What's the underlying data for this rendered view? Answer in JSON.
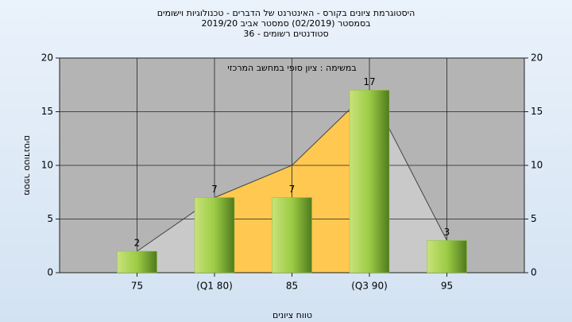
{
  "chart_data": {
    "type": "bar",
    "title": [
      "היסטוגרמת ציונים בקורס - האינטרנט של הדברים - טכנולוגיות וישומים",
      "בסמסטר  (02/2019)  סמסטר אביב 2019/20",
      "סטודנטים רשומים - 36"
    ],
    "subtitle": "במשימה : ציון סופי במחשב המרכזי",
    "x_label": "טווח ציונים",
    "y_label": "מספר סטודנטים",
    "categories": [
      "75",
      "(Q1 80)",
      "85",
      "(Q3 90)",
      "95"
    ],
    "values": [
      2,
      7,
      7,
      17,
      3
    ],
    "color": "#8cbf3a",
    "areas": [
      {
        "color": "#c9c9c9",
        "values": [
          2,
          7,
          10,
          17,
          3
        ]
      },
      {
        "color": "#ffc850",
        "values": [
          null,
          7,
          10,
          17,
          null
        ]
      }
    ],
    "ylim": [
      0,
      20
    ],
    "yticks": [
      0,
      5,
      10,
      15,
      20
    ],
    "y2lim": [
      0,
      20
    ],
    "y2ticks": [
      0,
      5,
      10,
      15,
      20
    ],
    "grid": true
  }
}
